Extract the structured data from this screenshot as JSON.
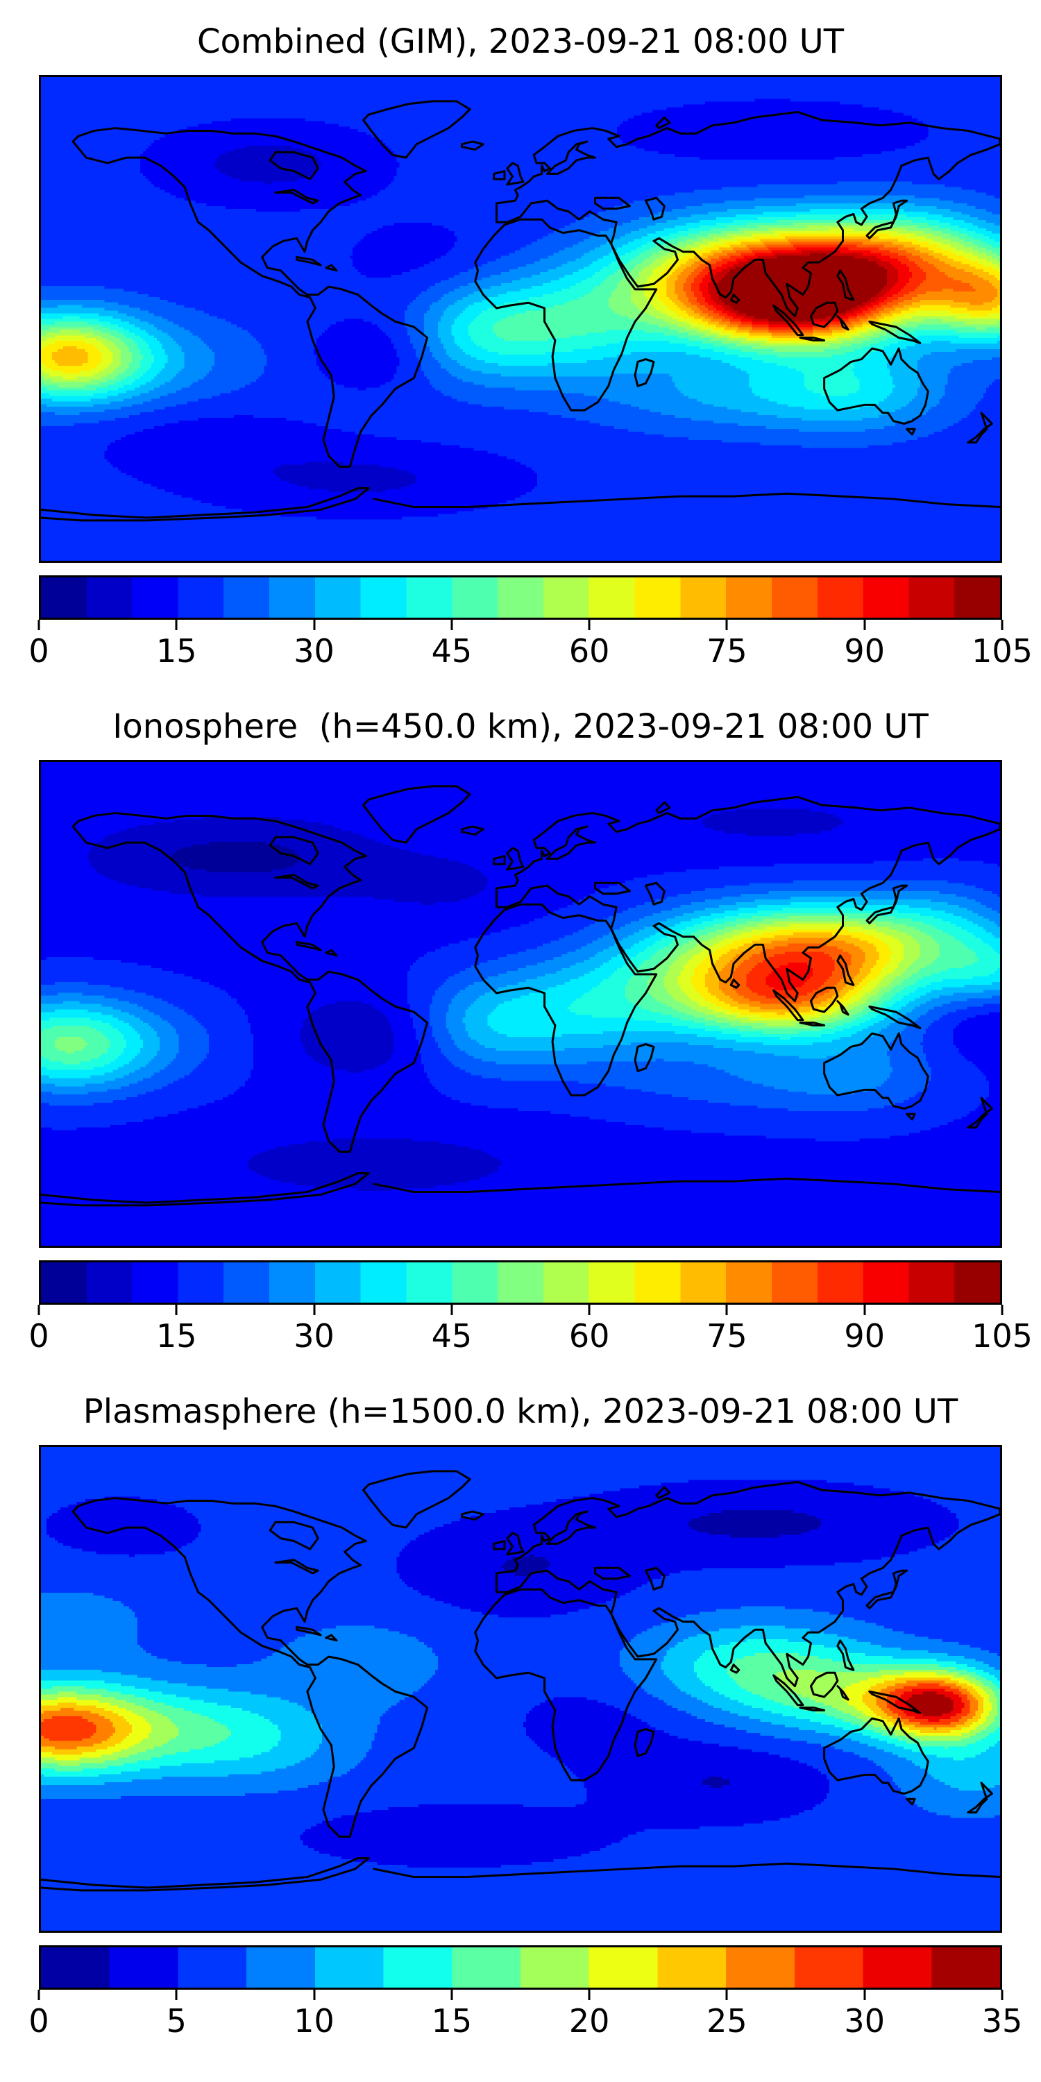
{
  "figure": {
    "kind": "stacked-contour-map-figure",
    "background": "#ffffff",
    "colormap_name": "jet",
    "coast_color": "#000000"
  },
  "chart_data": [
    {
      "type": "heatmap",
      "title": "Combined (GIM), 2023-09-21 08:00 UT",
      "colormap": "jet",
      "projection": "equirectangular",
      "x_range": [
        -180,
        180
      ],
      "y_range": [
        -90,
        90
      ],
      "levels": {
        "min": 0,
        "max": 105,
        "step": 5
      },
      "colorbar_ticks": [
        0,
        15,
        30,
        45,
        60,
        75,
        90,
        105
      ],
      "legend_position": "bottom",
      "grid": false,
      "blob_format": "[lon, lat, amplitude, sigma_lon_deg, sigma_lat_deg]",
      "field": {
        "base": 17,
        "blobs": [
          [
            112,
            17,
            90,
            40,
            13
          ],
          [
            100,
            2,
            50,
            26,
            10
          ],
          [
            62,
            13,
            12,
            22,
            13
          ],
          [
            20,
            -2,
            24,
            24,
            14
          ],
          [
            178,
            7,
            40,
            16,
            11
          ],
          [
            150,
            30,
            10,
            20,
            10
          ],
          [
            -171,
            -14,
            50,
            20,
            11
          ],
          [
            -140,
            -16,
            10,
            30,
            12
          ],
          [
            -15,
            -5,
            18,
            18,
            13
          ],
          [
            127,
            -26,
            17,
            24,
            11
          ],
          [
            80,
            -28,
            13,
            35,
            10
          ],
          [
            -95,
            58,
            -9,
            28,
            10
          ],
          [
            -60,
            -60,
            -8,
            40,
            9
          ],
          [
            95,
            70,
            -6,
            40,
            8
          ],
          [
            -57,
            -13,
            -7,
            16,
            9
          ],
          [
            -120,
            -45,
            -5,
            30,
            10
          ],
          [
            -35,
            22,
            -4,
            25,
            12
          ]
        ]
      }
    },
    {
      "type": "heatmap",
      "title": "Ionosphere  (h=450.0 km), 2023-09-21 08:00 UT",
      "colormap": "jet",
      "projection": "equirectangular",
      "x_range": [
        -180,
        180
      ],
      "y_range": [
        -90,
        90
      ],
      "levels": {
        "min": 0,
        "max": 105,
        "step": 5
      },
      "colorbar_ticks": [
        0,
        15,
        30,
        45,
        60,
        75,
        90,
        105
      ],
      "legend_position": "bottom",
      "grid": false,
      "blob_format": "[lon, lat, amplitude, sigma_lon_deg, sigma_lat_deg]",
      "field": {
        "base": 14,
        "blobs": [
          [
            112,
            20,
            62,
            36,
            12
          ],
          [
            100,
            1,
            48,
            26,
            10
          ],
          [
            60,
            8,
            18,
            24,
            14
          ],
          [
            20,
            -3,
            20,
            24,
            14
          ],
          [
            178,
            12,
            18,
            14,
            10
          ],
          [
            160,
            33,
            8,
            18,
            10
          ],
          [
            -172,
            -15,
            32,
            22,
            12
          ],
          [
            -145,
            -15,
            8,
            28,
            12
          ],
          [
            -15,
            -8,
            14,
            18,
            13
          ],
          [
            127,
            -26,
            10,
            24,
            11
          ],
          [
            80,
            -28,
            8,
            35,
            10
          ],
          [
            -95,
            55,
            -9,
            30,
            11
          ],
          [
            -60,
            -12,
            -8,
            22,
            12
          ],
          [
            -30,
            45,
            -5,
            25,
            10
          ],
          [
            95,
            68,
            -5,
            40,
            8
          ],
          [
            -55,
            -60,
            -7,
            45,
            9
          ],
          [
            178,
            -5,
            -7,
            14,
            10
          ],
          [
            -140,
            55,
            -5,
            25,
            10
          ]
        ]
      }
    },
    {
      "type": "heatmap",
      "title": "Plasmasphere (h=1500.0 km), 2023-09-21 08:00 UT",
      "colormap": "jet",
      "projection": "equirectangular",
      "x_range": [
        -180,
        180
      ],
      "y_range": [
        -90,
        90
      ],
      "levels": {
        "min": 0,
        "max": 35,
        "step": 2.5
      },
      "colorbar_ticks": [
        0,
        5,
        10,
        15,
        20,
        25,
        30,
        35
      ],
      "legend_position": "bottom",
      "grid": false,
      "blob_format": "[lon, lat, amplitude, sigma_lon_deg, sigma_lat_deg]",
      "field": {
        "base": 6,
        "blobs": [
          [
            157,
            -6,
            25,
            17,
            9
          ],
          [
            125,
            -3,
            8,
            25,
            10
          ],
          [
            90,
            8,
            9,
            30,
            12
          ],
          [
            -175,
            -15,
            20,
            22,
            11
          ],
          [
            -135,
            -15,
            8,
            30,
            12
          ],
          [
            -95,
            -20,
            4,
            25,
            12
          ],
          [
            170,
            -30,
            5,
            20,
            12
          ],
          [
            -60,
            10,
            3,
            25,
            12
          ],
          [
            -170,
            25,
            2.5,
            25,
            12
          ],
          [
            90,
            62,
            -4,
            45,
            10
          ],
          [
            0,
            45,
            -3.5,
            30,
            12
          ],
          [
            75,
            -35,
            -3.5,
            28,
            10
          ],
          [
            -25,
            -55,
            -3,
            40,
            8
          ],
          [
            -150,
            60,
            -2,
            25,
            10
          ],
          [
            30,
            -12,
            -2,
            25,
            12
          ]
        ]
      }
    }
  ]
}
